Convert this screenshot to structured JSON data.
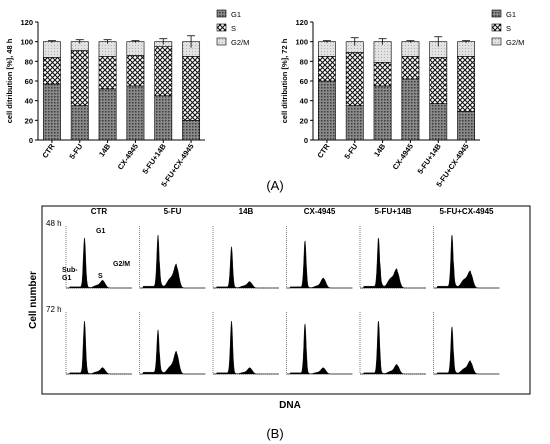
{
  "panel_a_label": "(A)",
  "panel_b_label": "(B)",
  "chart_data": [
    {
      "type": "bar",
      "stacked": true,
      "ylabel": "cell ditribution [%], 48 h",
      "ylim": [
        0,
        120
      ],
      "yticks": [
        "0",
        "20",
        "40",
        "60",
        "80",
        "100",
        "120"
      ],
      "categories": [
        "CTR",
        "5-FU",
        "14B",
        "CX-4945",
        "5-FU+14B",
        "5-FU+CX-4945"
      ],
      "legend_position": "right",
      "series": [
        {
          "name": "G1",
          "values": [
            57,
            35,
            52,
            55,
            45,
            20
          ]
        },
        {
          "name": "S",
          "values": [
            27,
            56,
            33,
            31,
            50,
            65
          ]
        },
        {
          "name": "G2/M",
          "values": [
            16,
            9,
            15,
            14,
            5,
            15
          ]
        }
      ],
      "error": [
        1,
        2,
        2,
        1,
        3,
        6
      ]
    },
    {
      "type": "bar",
      "stacked": true,
      "ylabel": "cell ditribution [%], 72 h",
      "ylim": [
        0,
        120
      ],
      "yticks": [
        "0",
        "20",
        "40",
        "60",
        "80",
        "100",
        "120"
      ],
      "categories": [
        "CTR",
        "5-FU",
        "14B",
        "CX-4945",
        "5-FU+14B",
        "5-FU+CX-4945"
      ],
      "legend_position": "right",
      "series": [
        {
          "name": "G1",
          "values": [
            60,
            35,
            55,
            62,
            37,
            29
          ]
        },
        {
          "name": "S",
          "values": [
            25,
            54,
            24,
            23,
            47,
            56
          ]
        },
        {
          "name": "G2/M",
          "values": [
            15,
            11,
            21,
            15,
            16,
            15
          ]
        }
      ],
      "error": [
        1,
        4,
        3,
        1,
        5,
        1
      ]
    }
  ],
  "flow": {
    "columns": [
      "CTR",
      "5-FU",
      "14B",
      "CX-4945",
      "5-FU+14B",
      "5-FU+CX-4945"
    ],
    "rows": [
      "48 h",
      "72 h"
    ],
    "ylabel": "Cell number",
    "xlabel": "DNA",
    "peak_labels": [
      "G1",
      "Sub-\nG1",
      "S",
      "G2/M"
    ],
    "histograms": {
      "48 h": [
        {
          "g1": 0.85,
          "s": 0.05,
          "g2": 0.12,
          "sub": 0.02
        },
        {
          "g1": 0.9,
          "s": 0.18,
          "g2": 0.36,
          "sub": 0.03
        },
        {
          "g1": 0.7,
          "s": 0.04,
          "g2": 0.1,
          "sub": 0.02
        },
        {
          "g1": 0.8,
          "s": 0.04,
          "g2": 0.16,
          "sub": 0.02
        },
        {
          "g1": 0.85,
          "s": 0.18,
          "g2": 0.28,
          "sub": 0.03
        },
        {
          "g1": 0.9,
          "s": 0.16,
          "g2": 0.25,
          "sub": 0.03
        }
      ],
      "72 h": [
        {
          "g1": 0.9,
          "s": 0.04,
          "g2": 0.1,
          "sub": 0.02
        },
        {
          "g1": 0.75,
          "s": 0.14,
          "g2": 0.35,
          "sub": 0.03
        },
        {
          "g1": 0.9,
          "s": 0.03,
          "g2": 0.1,
          "sub": 0.02
        },
        {
          "g1": 0.85,
          "s": 0.03,
          "g2": 0.1,
          "sub": 0.02
        },
        {
          "g1": 0.9,
          "s": 0.05,
          "g2": 0.15,
          "sub": 0.02
        },
        {
          "g1": 0.8,
          "s": 0.1,
          "g2": 0.2,
          "sub": 0.02
        }
      ]
    }
  },
  "colors": {
    "g1": "#6b6b6b",
    "s": "#ffffff",
    "g2m": "#d4d4d4",
    "trace": "#000000"
  }
}
